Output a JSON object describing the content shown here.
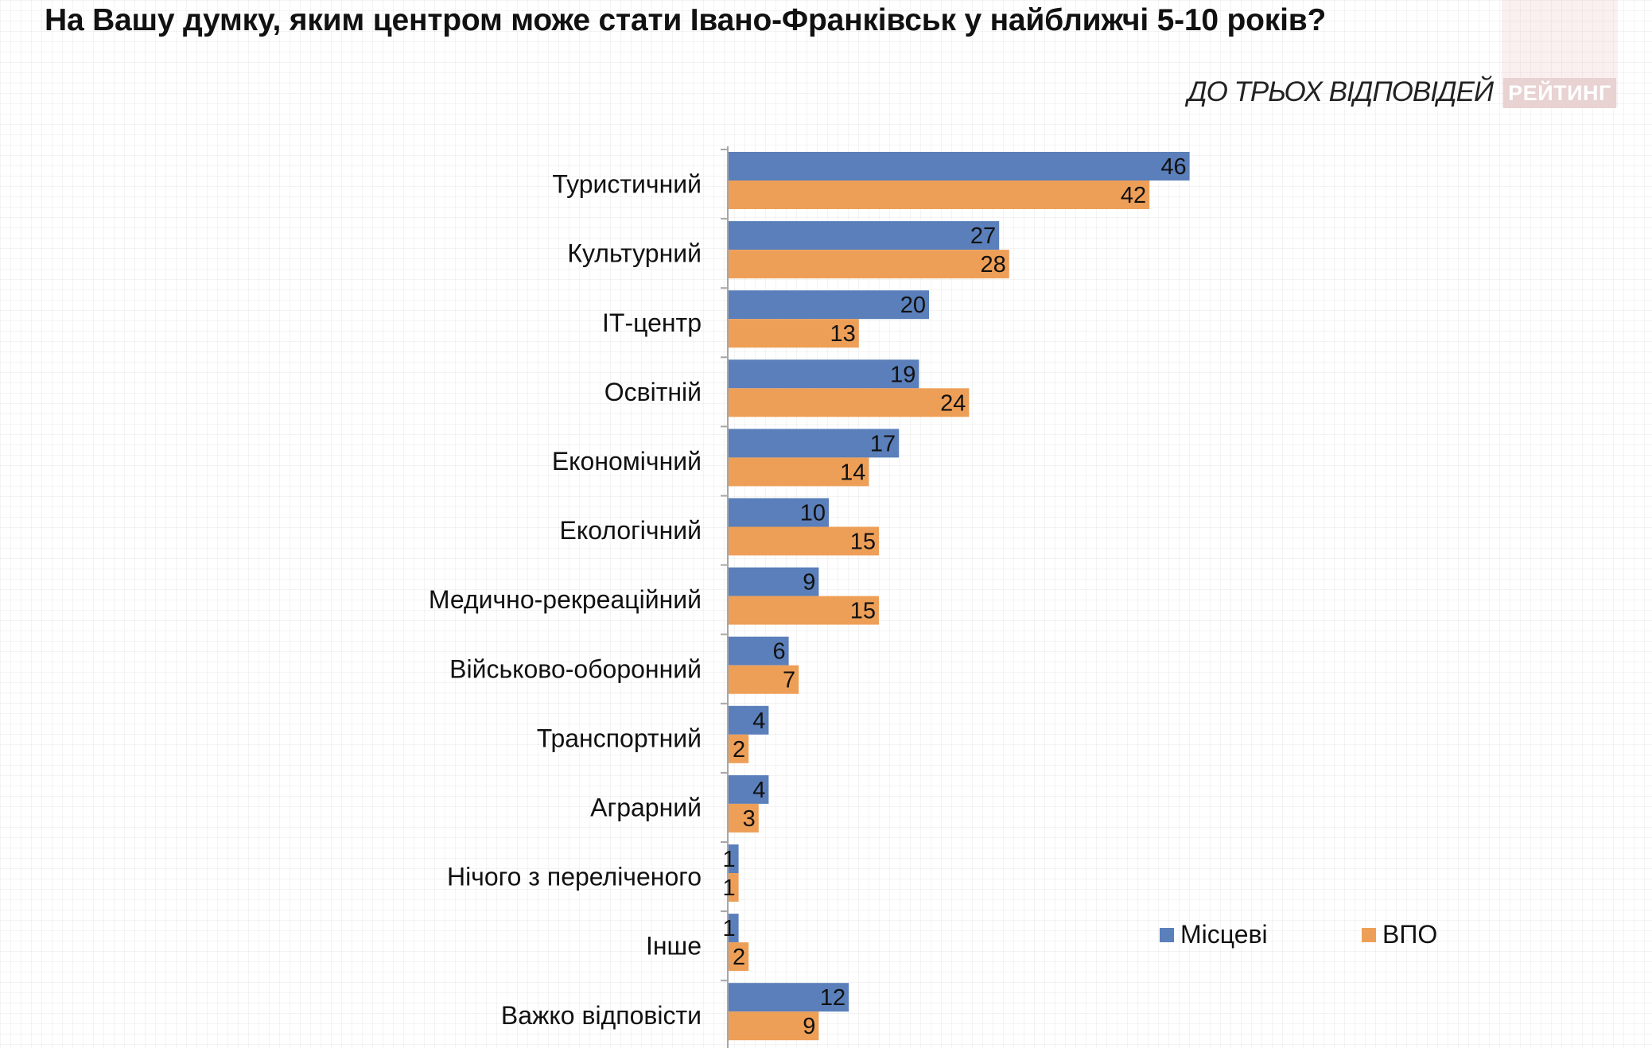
{
  "title": "На Вашу думку, яким центром може стати Івано-Франківськ у найближчі 5-10 років?",
  "subtitle": "ДО ТРЬОХ ВІДПОВІДЕЙ",
  "logo": "РЕЙТИНГ",
  "colors": {
    "local": "#5a7fba",
    "idp": "#ee9f57"
  },
  "chart_data": {
    "type": "bar",
    "orientation": "horizontal",
    "categories": [
      "Туристичний",
      "Культурний",
      "ІТ-центр",
      "Освітній",
      "Економічний",
      "Екологічний",
      "Медично-рекреаційний",
      "Військово-оборонний",
      "Транспортний",
      "Аграрний",
      "Нічого з переліченого",
      "Інше",
      "Важко відповісти"
    ],
    "series": [
      {
        "name": "Місцеві",
        "values": [
          46,
          27,
          20,
          19,
          17,
          10,
          9,
          6,
          4,
          4,
          1,
          1,
          12
        ]
      },
      {
        "name": "ВПО",
        "values": [
          42,
          28,
          13,
          24,
          14,
          15,
          15,
          7,
          2,
          3,
          1,
          2,
          9
        ]
      }
    ],
    "xlim": [
      0,
      50
    ],
    "legend": "right"
  }
}
